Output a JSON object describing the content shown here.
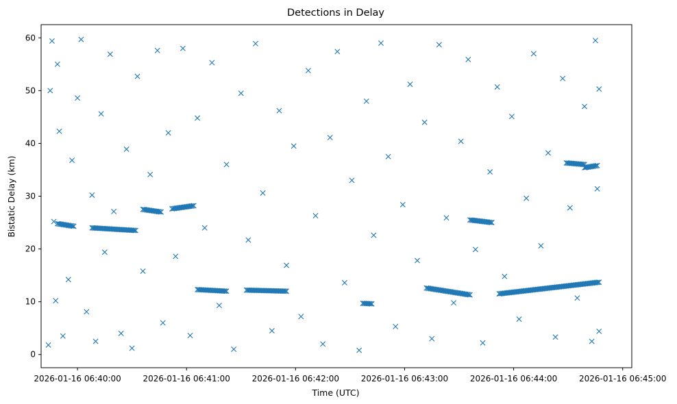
{
  "chart_data": {
    "type": "scatter",
    "title": "Detections in Delay",
    "xlabel": "Time (UTC)",
    "ylabel": "Bistatic Delay (km)",
    "x_ticks": [
      "2026-01-16 06:40:00",
      "2026-01-16 06:41:00",
      "2026-01-16 06:42:00",
      "2026-01-16 06:43:00",
      "2026-01-16 06:44:00",
      "2026-01-16 06:45:00"
    ],
    "y_ticks": [
      "0",
      "10",
      "20",
      "30",
      "40",
      "50",
      "60"
    ],
    "xlim": [
      "2026-01-16 06:39:40",
      "2026-01-16 06:45:05"
    ],
    "ylim": [
      -2.5,
      62.5
    ],
    "marker": "x",
    "color": "#1f77b4",
    "grid": false,
    "series": [
      {
        "points": [
          [
            "2026-01-16 06:39:44",
            1.8
          ],
          [
            "2026-01-16 06:39:45",
            50.0
          ],
          [
            "2026-01-16 06:39:46",
            59.4
          ],
          [
            "2026-01-16 06:39:47",
            25.2
          ],
          [
            "2026-01-16 06:39:48",
            10.2
          ],
          [
            "2026-01-16 06:39:49",
            55.0
          ],
          [
            "2026-01-16 06:39:50",
            42.3
          ],
          [
            "2026-01-16 06:39:52",
            3.5
          ],
          [
            "2026-01-16 06:39:55",
            14.2
          ],
          [
            "2026-01-16 06:39:57",
            36.8
          ],
          [
            "2026-01-16 06:40:00",
            48.6
          ],
          [
            "2026-01-16 06:40:02",
            59.7
          ],
          [
            "2026-01-16 06:40:05",
            8.1
          ],
          [
            "2026-01-16 06:40:08",
            30.2
          ],
          [
            "2026-01-16 06:40:10",
            2.5
          ],
          [
            "2026-01-16 06:40:13",
            45.6
          ],
          [
            "2026-01-16 06:40:15",
            19.4
          ],
          [
            "2026-01-16 06:40:18",
            56.9
          ],
          [
            "2026-01-16 06:40:20",
            27.1
          ],
          [
            "2026-01-16 06:40:24",
            4.0
          ],
          [
            "2026-01-16 06:40:27",
            38.9
          ],
          [
            "2026-01-16 06:40:30",
            1.2
          ],
          [
            "2026-01-16 06:40:33",
            52.7
          ],
          [
            "2026-01-16 06:40:36",
            15.8
          ],
          [
            "2026-01-16 06:40:40",
            34.1
          ],
          [
            "2026-01-16 06:40:44",
            57.6
          ],
          [
            "2026-01-16 06:40:47",
            6.0
          ],
          [
            "2026-01-16 06:40:50",
            42.0
          ],
          [
            "2026-01-16 06:40:54",
            18.6
          ],
          [
            "2026-01-16 06:40:58",
            58.0
          ],
          [
            "2026-01-16 06:41:02",
            3.6
          ],
          [
            "2026-01-16 06:41:06",
            44.8
          ],
          [
            "2026-01-16 06:41:10",
            24.0
          ],
          [
            "2026-01-16 06:41:14",
            55.3
          ],
          [
            "2026-01-16 06:41:18",
            9.3
          ],
          [
            "2026-01-16 06:41:22",
            36.0
          ],
          [
            "2026-01-16 06:41:26",
            1.0
          ],
          [
            "2026-01-16 06:41:30",
            49.5
          ],
          [
            "2026-01-16 06:41:34",
            21.7
          ],
          [
            "2026-01-16 06:41:38",
            58.9
          ],
          [
            "2026-01-16 06:41:42",
            30.6
          ],
          [
            "2026-01-16 06:41:47",
            4.5
          ],
          [
            "2026-01-16 06:41:51",
            46.2
          ],
          [
            "2026-01-16 06:41:55",
            16.9
          ],
          [
            "2026-01-16 06:41:59",
            39.5
          ],
          [
            "2026-01-16 06:42:03",
            7.2
          ],
          [
            "2026-01-16 06:42:07",
            53.8
          ],
          [
            "2026-01-16 06:42:11",
            26.3
          ],
          [
            "2026-01-16 06:42:15",
            2.0
          ],
          [
            "2026-01-16 06:42:19",
            41.1
          ],
          [
            "2026-01-16 06:42:23",
            57.4
          ],
          [
            "2026-01-16 06:42:27",
            13.6
          ],
          [
            "2026-01-16 06:42:31",
            33.0
          ],
          [
            "2026-01-16 06:42:35",
            0.8
          ],
          [
            "2026-01-16 06:42:39",
            48.0
          ],
          [
            "2026-01-16 06:42:43",
            22.6
          ],
          [
            "2026-01-16 06:42:47",
            59.0
          ],
          [
            "2026-01-16 06:42:51",
            37.5
          ],
          [
            "2026-01-16 06:42:55",
            5.3
          ],
          [
            "2026-01-16 06:42:59",
            28.4
          ],
          [
            "2026-01-16 06:43:03",
            51.2
          ],
          [
            "2026-01-16 06:43:07",
            17.8
          ],
          [
            "2026-01-16 06:43:11",
            44.0
          ],
          [
            "2026-01-16 06:43:15",
            3.0
          ],
          [
            "2026-01-16 06:43:19",
            58.7
          ],
          [
            "2026-01-16 06:43:23",
            25.9
          ],
          [
            "2026-01-16 06:43:27",
            9.8
          ],
          [
            "2026-01-16 06:43:31",
            40.4
          ],
          [
            "2026-01-16 06:43:35",
            55.9
          ],
          [
            "2026-01-16 06:43:39",
            19.9
          ],
          [
            "2026-01-16 06:43:43",
            2.2
          ],
          [
            "2026-01-16 06:43:47",
            34.6
          ],
          [
            "2026-01-16 06:43:51",
            50.7
          ],
          [
            "2026-01-16 06:43:55",
            14.8
          ],
          [
            "2026-01-16 06:43:59",
            45.1
          ],
          [
            "2026-01-16 06:44:03",
            6.7
          ],
          [
            "2026-01-16 06:44:07",
            29.6
          ],
          [
            "2026-01-16 06:44:11",
            57.0
          ],
          [
            "2026-01-16 06:44:15",
            20.6
          ],
          [
            "2026-01-16 06:44:19",
            38.2
          ],
          [
            "2026-01-16 06:44:23",
            3.3
          ],
          [
            "2026-01-16 06:44:27",
            52.3
          ],
          [
            "2026-01-16 06:44:31",
            27.8
          ],
          [
            "2026-01-16 06:44:35",
            10.7
          ],
          [
            "2026-01-16 06:44:39",
            47.0
          ],
          [
            "2026-01-16 06:44:43",
            2.5
          ],
          [
            "2026-01-16 06:44:45",
            59.5
          ],
          [
            "2026-01-16 06:44:46",
            31.4
          ],
          [
            "2026-01-16 06:44:47",
            4.4
          ],
          [
            "2026-01-16 06:44:47",
            50.3
          ]
        ]
      }
    ],
    "tracks": [
      {
        "t": [
          "2026-01-16 06:39:49",
          "2026-01-16 06:39:58"
        ],
        "y": [
          24.8,
          24.3
        ]
      },
      {
        "t": [
          "2026-01-16 06:40:08",
          "2026-01-16 06:40:32"
        ],
        "y": [
          24.0,
          23.5
        ]
      },
      {
        "t": [
          "2026-01-16 06:40:36",
          "2026-01-16 06:40:46"
        ],
        "y": [
          27.5,
          27.0
        ]
      },
      {
        "t": [
          "2026-01-16 06:40:52",
          "2026-01-16 06:41:04"
        ],
        "y": [
          27.6,
          28.2
        ]
      },
      {
        "t": [
          "2026-01-16 06:41:06",
          "2026-01-16 06:41:22"
        ],
        "y": [
          12.3,
          12.0
        ]
      },
      {
        "t": [
          "2026-01-16 06:41:33",
          "2026-01-16 06:41:55"
        ],
        "y": [
          12.2,
          12.0
        ]
      },
      {
        "t": [
          "2026-01-16 06:42:37",
          "2026-01-16 06:42:42"
        ],
        "y": [
          9.7,
          9.6
        ]
      },
      {
        "t": [
          "2026-01-16 06:43:12",
          "2026-01-16 06:43:36"
        ],
        "y": [
          12.6,
          11.3
        ]
      },
      {
        "t": [
          "2026-01-16 06:43:36",
          "2026-01-16 06:43:48"
        ],
        "y": [
          25.5,
          25.0
        ]
      },
      {
        "t": [
          "2026-01-16 06:43:52",
          "2026-01-16 06:44:47"
        ],
        "y": [
          11.5,
          13.7
        ]
      },
      {
        "t": [
          "2026-01-16 06:44:29",
          "2026-01-16 06:44:39"
        ],
        "y": [
          36.3,
          36.0
        ]
      },
      {
        "t": [
          "2026-01-16 06:44:39",
          "2026-01-16 06:44:46"
        ],
        "y": [
          35.4,
          35.8
        ]
      }
    ]
  }
}
